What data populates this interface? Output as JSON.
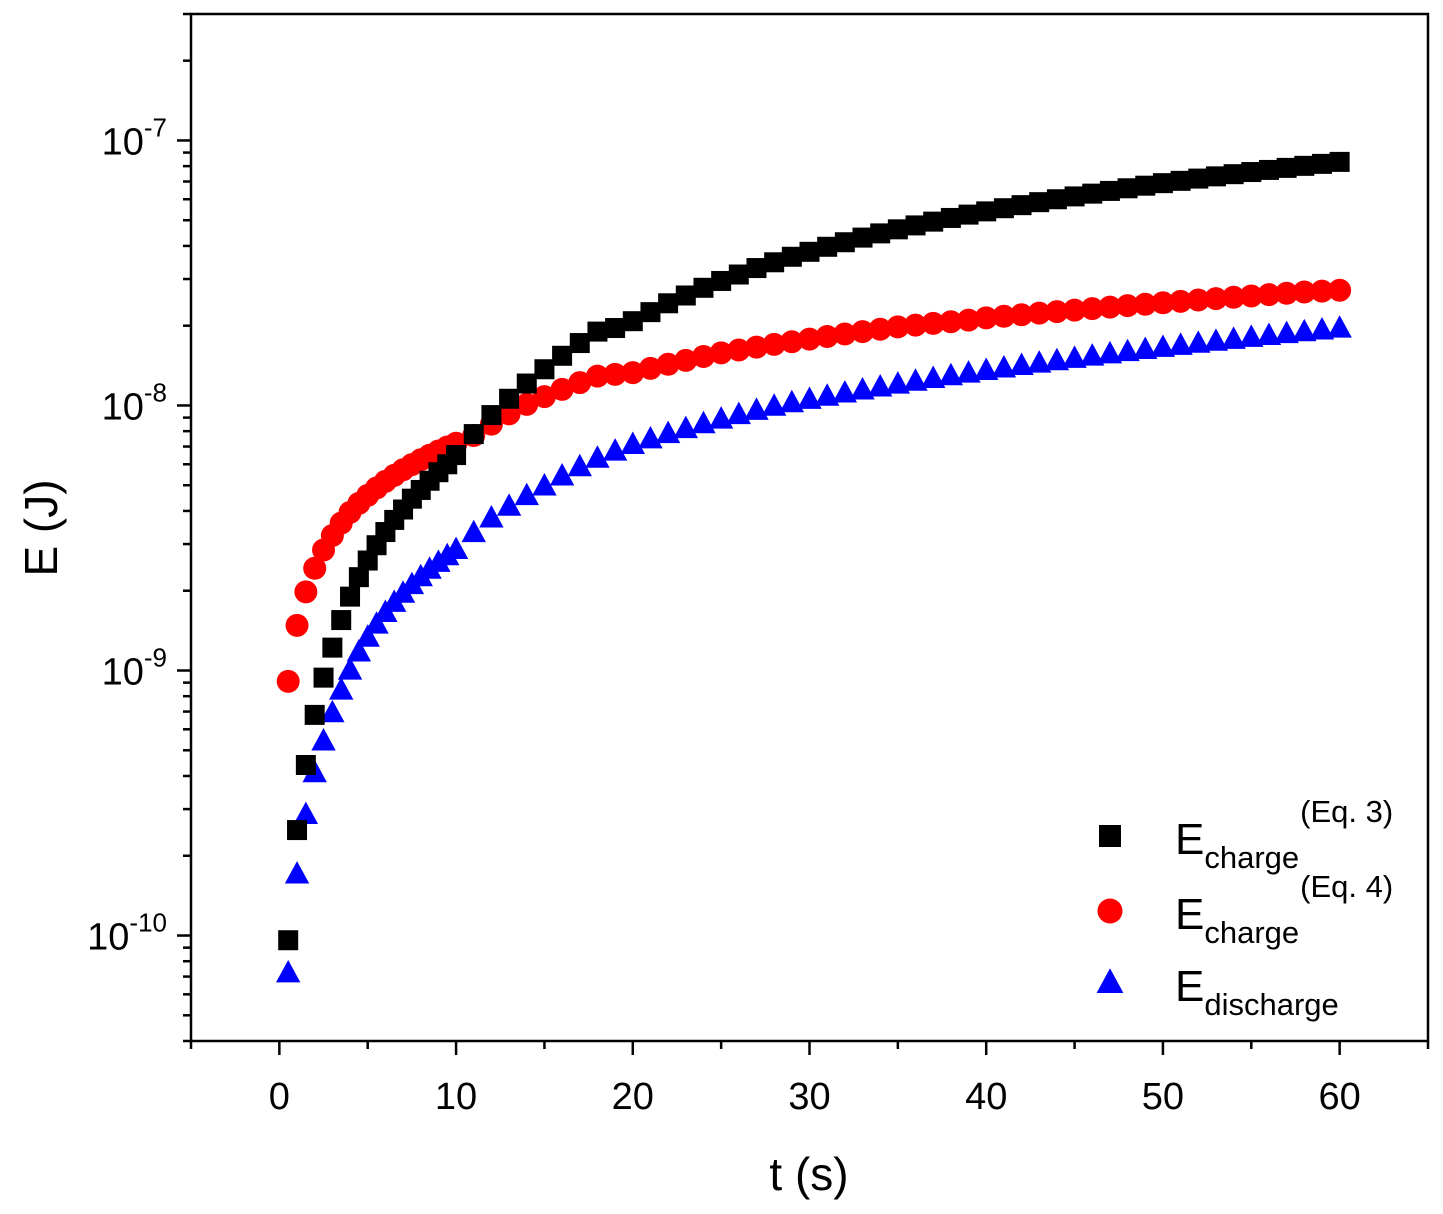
{
  "chart_data": {
    "type": "scatter",
    "title": "",
    "xlabel": "t (s)",
    "ylabel": "E (J)",
    "xlim": [
      -5,
      65
    ],
    "ylim": [
      4e-11,
      3e-07
    ],
    "yscale": "log",
    "grid": false,
    "legend_position": "bottom-right",
    "x_ticks": [
      {
        "value": 0,
        "label": "0"
      },
      {
        "value": 10,
        "label": "10"
      },
      {
        "value": 20,
        "label": "20"
      },
      {
        "value": 30,
        "label": "30"
      },
      {
        "value": 40,
        "label": "40"
      },
      {
        "value": 50,
        "label": "50"
      },
      {
        "value": 60,
        "label": "60"
      }
    ],
    "y_ticks": [
      {
        "value": 1e-10,
        "base": "10",
        "exp": "-10"
      },
      {
        "value": 1e-09,
        "base": "10",
        "exp": "-9"
      },
      {
        "value": 1e-08,
        "base": "10",
        "exp": "-8"
      },
      {
        "value": 1e-07,
        "base": "10",
        "exp": "-7"
      }
    ],
    "series": [
      {
        "name": "E_charge (Eq. 3)",
        "legend_main": "E",
        "legend_sub": "charge",
        "legend_sup": "(Eq. 3)",
        "marker": "square",
        "color": "#000000",
        "points": [
          [
            0.5,
            9.6e-11
          ],
          [
            1,
            2.5e-10
          ],
          [
            1.5,
            4.4e-10
          ],
          [
            2,
            6.8e-10
          ],
          [
            2.5,
            9.4e-10
          ],
          [
            3,
            1.22e-09
          ],
          [
            3.5,
            1.55e-09
          ],
          [
            4,
            1.9e-09
          ],
          [
            4.5,
            2.25e-09
          ],
          [
            5,
            2.6e-09
          ],
          [
            5.5,
            2.97e-09
          ],
          [
            6,
            3.33e-09
          ],
          [
            6.5,
            3.7e-09
          ],
          [
            7,
            4.05e-09
          ],
          [
            7.5,
            4.45e-09
          ],
          [
            8,
            4.8e-09
          ],
          [
            8.5,
            5.2e-09
          ],
          [
            9,
            5.6e-09
          ],
          [
            9.5,
            6e-09
          ],
          [
            10,
            6.5e-09
          ],
          [
            11,
            7.8e-09
          ],
          [
            12,
            9.2e-09
          ],
          [
            13,
            1.06e-08
          ],
          [
            14,
            1.21e-08
          ],
          [
            15,
            1.37e-08
          ],
          [
            16,
            1.54e-08
          ],
          [
            17,
            1.72e-08
          ],
          [
            18,
            1.9e-08
          ],
          [
            19,
            1.96e-08
          ],
          [
            20,
            2.08e-08
          ],
          [
            21,
            2.25e-08
          ],
          [
            22,
            2.43e-08
          ],
          [
            23,
            2.6e-08
          ],
          [
            24,
            2.78e-08
          ],
          [
            25,
            2.95e-08
          ],
          [
            26,
            3.12e-08
          ],
          [
            27,
            3.3e-08
          ],
          [
            28,
            3.47e-08
          ],
          [
            29,
            3.64e-08
          ],
          [
            30,
            3.8e-08
          ],
          [
            31,
            3.97e-08
          ],
          [
            32,
            4.13e-08
          ],
          [
            33,
            4.3e-08
          ],
          [
            34,
            4.46e-08
          ],
          [
            35,
            4.62e-08
          ],
          [
            36,
            4.78e-08
          ],
          [
            37,
            4.94e-08
          ],
          [
            38,
            5.1e-08
          ],
          [
            39,
            5.25e-08
          ],
          [
            40,
            5.4e-08
          ],
          [
            41,
            5.55e-08
          ],
          [
            42,
            5.7e-08
          ],
          [
            43,
            5.85e-08
          ],
          [
            44,
            6e-08
          ],
          [
            45,
            6.15e-08
          ],
          [
            46,
            6.3e-08
          ],
          [
            47,
            6.45e-08
          ],
          [
            48,
            6.6e-08
          ],
          [
            49,
            6.75e-08
          ],
          [
            50,
            6.9e-08
          ],
          [
            51,
            7.04e-08
          ],
          [
            52,
            7.18e-08
          ],
          [
            53,
            7.32e-08
          ],
          [
            54,
            7.46e-08
          ],
          [
            55,
            7.6e-08
          ],
          [
            56,
            7.74e-08
          ],
          [
            57,
            7.88e-08
          ],
          [
            58,
            8.02e-08
          ],
          [
            59,
            8.16e-08
          ],
          [
            60,
            8.3e-08
          ]
        ]
      },
      {
        "name": "E_charge (Eq. 4)",
        "legend_main": "E",
        "legend_sub": "charge",
        "legend_sup": "(Eq. 4)",
        "marker": "circle",
        "color": "#ff0000",
        "points": [
          [
            0.5,
            9.1e-10
          ],
          [
            1,
            1.48e-09
          ],
          [
            1.5,
            1.98e-09
          ],
          [
            2,
            2.43e-09
          ],
          [
            2.5,
            2.85e-09
          ],
          [
            3,
            3.23e-09
          ],
          [
            3.5,
            3.6e-09
          ],
          [
            4,
            3.95e-09
          ],
          [
            4.5,
            4.27e-09
          ],
          [
            5,
            4.58e-09
          ],
          [
            5.5,
            4.88e-09
          ],
          [
            6,
            5.17e-09
          ],
          [
            6.5,
            5.45e-09
          ],
          [
            7,
            5.72e-09
          ],
          [
            7.5,
            5.98e-09
          ],
          [
            8,
            6.24e-09
          ],
          [
            8.5,
            6.49e-09
          ],
          [
            9,
            6.73e-09
          ],
          [
            9.5,
            6.97e-09
          ],
          [
            10,
            7.2e-09
          ],
          [
            11,
            7.7e-09
          ],
          [
            12,
            8.5e-09
          ],
          [
            13,
            9.3e-09
          ],
          [
            14,
            1.01e-08
          ],
          [
            15,
            1.08e-08
          ],
          [
            16,
            1.15e-08
          ],
          [
            17,
            1.22e-08
          ],
          [
            18,
            1.29e-08
          ],
          [
            19,
            1.31e-08
          ],
          [
            20,
            1.33e-08
          ],
          [
            21,
            1.38e-08
          ],
          [
            22,
            1.43e-08
          ],
          [
            23,
            1.48e-08
          ],
          [
            24,
            1.53e-08
          ],
          [
            25,
            1.58e-08
          ],
          [
            26,
            1.62e-08
          ],
          [
            27,
            1.66e-08
          ],
          [
            28,
            1.7e-08
          ],
          [
            29,
            1.74e-08
          ],
          [
            30,
            1.78e-08
          ],
          [
            31,
            1.82e-08
          ],
          [
            32,
            1.86e-08
          ],
          [
            33,
            1.9e-08
          ],
          [
            34,
            1.94e-08
          ],
          [
            35,
            1.98e-08
          ],
          [
            36,
            2.01e-08
          ],
          [
            37,
            2.04e-08
          ],
          [
            38,
            2.07e-08
          ],
          [
            39,
            2.1e-08
          ],
          [
            40,
            2.14e-08
          ],
          [
            41,
            2.17e-08
          ],
          [
            42,
            2.2e-08
          ],
          [
            43,
            2.23e-08
          ],
          [
            44,
            2.26e-08
          ],
          [
            45,
            2.29e-08
          ],
          [
            46,
            2.32e-08
          ],
          [
            47,
            2.35e-08
          ],
          [
            48,
            2.38e-08
          ],
          [
            49,
            2.41e-08
          ],
          [
            50,
            2.44e-08
          ],
          [
            51,
            2.47e-08
          ],
          [
            52,
            2.5e-08
          ],
          [
            53,
            2.53e-08
          ],
          [
            54,
            2.56e-08
          ],
          [
            55,
            2.59e-08
          ],
          [
            56,
            2.62e-08
          ],
          [
            57,
            2.65e-08
          ],
          [
            58,
            2.68e-08
          ],
          [
            59,
            2.7e-08
          ],
          [
            60,
            2.72e-08
          ]
        ]
      },
      {
        "name": "E_discharge",
        "legend_main": "E",
        "legend_sub": "discharge",
        "legend_sup": "",
        "marker": "triangle",
        "color": "#0000ff",
        "points": [
          [
            0.5,
            7.2e-11
          ],
          [
            1,
            1.7e-10
          ],
          [
            1.5,
            2.85e-10
          ],
          [
            2,
            4.1e-10
          ],
          [
            2.5,
            5.4e-10
          ],
          [
            3,
            6.9e-10
          ],
          [
            3.5,
            8.4e-10
          ],
          [
            4,
            1e-09
          ],
          [
            4.5,
            1.17e-09
          ],
          [
            5,
            1.33e-09
          ],
          [
            5.5,
            1.49e-09
          ],
          [
            6,
            1.65e-09
          ],
          [
            6.5,
            1.8e-09
          ],
          [
            7,
            1.95e-09
          ],
          [
            7.5,
            2.1e-09
          ],
          [
            8,
            2.25e-09
          ],
          [
            8.5,
            2.4e-09
          ],
          [
            9,
            2.55e-09
          ],
          [
            9.5,
            2.7e-09
          ],
          [
            10,
            2.85e-09
          ],
          [
            11,
            3.3e-09
          ],
          [
            12,
            3.75e-09
          ],
          [
            13,
            4.15e-09
          ],
          [
            14,
            4.55e-09
          ],
          [
            15,
            4.95e-09
          ],
          [
            16,
            5.4e-09
          ],
          [
            17,
            5.85e-09
          ],
          [
            18,
            6.3e-09
          ],
          [
            19,
            6.7e-09
          ],
          [
            20,
            7.1e-09
          ],
          [
            21,
            7.45e-09
          ],
          [
            22,
            7.8e-09
          ],
          [
            23,
            8.15e-09
          ],
          [
            24,
            8.5e-09
          ],
          [
            25,
            8.85e-09
          ],
          [
            26,
            9.2e-09
          ],
          [
            27,
            9.55e-09
          ],
          [
            28,
            9.9e-09
          ],
          [
            29,
            1.02e-08
          ],
          [
            30,
            1.05e-08
          ],
          [
            31,
            1.08e-08
          ],
          [
            32,
            1.11e-08
          ],
          [
            33,
            1.14e-08
          ],
          [
            34,
            1.17e-08
          ],
          [
            35,
            1.2e-08
          ],
          [
            36,
            1.23e-08
          ],
          [
            37,
            1.26e-08
          ],
          [
            38,
            1.29e-08
          ],
          [
            39,
            1.32e-08
          ],
          [
            40,
            1.35e-08
          ],
          [
            41,
            1.38e-08
          ],
          [
            42,
            1.41e-08
          ],
          [
            43,
            1.44e-08
          ],
          [
            44,
            1.47e-08
          ],
          [
            45,
            1.5e-08
          ],
          [
            46,
            1.53e-08
          ],
          [
            47,
            1.56e-08
          ],
          [
            48,
            1.59e-08
          ],
          [
            49,
            1.62e-08
          ],
          [
            50,
            1.65e-08
          ],
          [
            51,
            1.68e-08
          ],
          [
            52,
            1.71e-08
          ],
          [
            53,
            1.74e-08
          ],
          [
            54,
            1.77e-08
          ],
          [
            55,
            1.8e-08
          ],
          [
            56,
            1.83e-08
          ],
          [
            57,
            1.86e-08
          ],
          [
            58,
            1.89e-08
          ],
          [
            59,
            1.92e-08
          ],
          [
            60,
            1.95e-08
          ]
        ]
      }
    ]
  }
}
